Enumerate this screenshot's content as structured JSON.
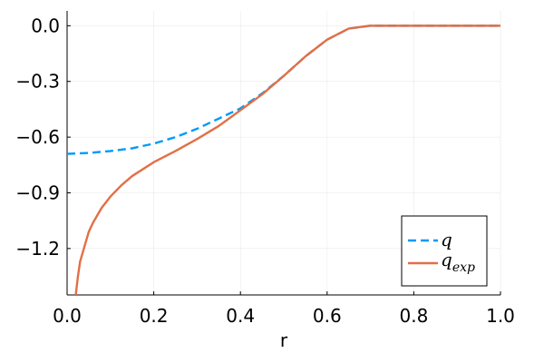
{
  "chart_data": {
    "type": "line",
    "xlabel": "r",
    "ylabel": "",
    "xlim": [
      0.0,
      1.0
    ],
    "ylim": [
      -1.45,
      0.08
    ],
    "xticks": [
      0.0,
      0.2,
      0.4,
      0.6,
      0.8,
      1.0
    ],
    "xtick_labels": [
      "0.0",
      "0.2",
      "0.4",
      "0.6",
      "0.8",
      "1.0"
    ],
    "yticks": [
      0.0,
      -0.3,
      -0.6,
      -0.9,
      -1.2
    ],
    "ytick_labels": [
      "0.0",
      "−0.3",
      "−0.6",
      "−0.9",
      "−1.2"
    ],
    "grid": true,
    "legend_position": "bottom-right",
    "series": [
      {
        "name": "q",
        "color": "#009af9",
        "dash": "dashed",
        "x": [
          0.0,
          0.05,
          0.1,
          0.15,
          0.2,
          0.25,
          0.3,
          0.35,
          0.4,
          0.45,
          0.5,
          0.55,
          0.6,
          0.65,
          0.7,
          0.75,
          0.8,
          0.85,
          0.9,
          0.95,
          1.0
        ],
        "y": [
          -0.69,
          -0.685,
          -0.675,
          -0.66,
          -0.635,
          -0.6,
          -0.555,
          -0.5,
          -0.445,
          -0.365,
          -0.27,
          -0.165,
          -0.075,
          -0.015,
          0.0,
          0.0,
          0.0,
          0.0,
          0.0,
          0.0,
          0.0
        ]
      },
      {
        "name": "q_exp",
        "color": "#e26f46",
        "dash": "solid",
        "x": [
          0.02,
          0.025,
          0.03,
          0.04,
          0.05,
          0.06,
          0.07,
          0.08,
          0.1,
          0.125,
          0.15,
          0.2,
          0.25,
          0.3,
          0.35,
          0.4,
          0.45,
          0.5,
          0.55,
          0.6,
          0.65,
          0.7,
          0.75,
          0.8,
          0.85,
          0.9,
          0.95,
          1.0
        ],
        "y": [
          -1.45,
          -1.35,
          -1.27,
          -1.19,
          -1.11,
          -1.06,
          -1.02,
          -0.98,
          -0.92,
          -0.86,
          -0.81,
          -0.735,
          -0.675,
          -0.61,
          -0.54,
          -0.455,
          -0.37,
          -0.27,
          -0.165,
          -0.075,
          -0.015,
          0.0,
          0.0,
          0.0,
          0.0,
          0.0,
          0.0,
          0.0
        ]
      }
    ]
  }
}
